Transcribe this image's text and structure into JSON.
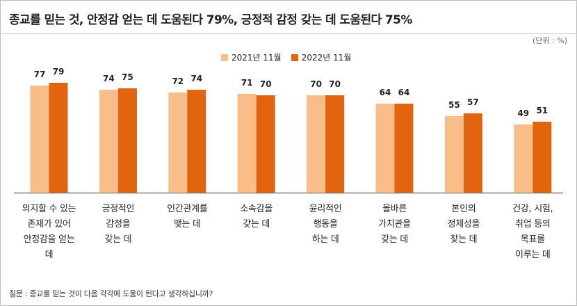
{
  "header": {
    "title": "종교를 믿는 것, 안정감 얻는 데 도움된다 79%, 긍정적 감정 갖는 데 도움된다 75%",
    "unit": "(단위 : %)"
  },
  "footer": {
    "note": "질문 : 종교를 믿는 것이 다음 각각에 도움이 된다고 생각하십니까?"
  },
  "colors": {
    "series_2021": "#f9bd8a",
    "series_2022": "#e2640e",
    "axis": "#7f7f7f"
  },
  "chart_data": {
    "type": "bar",
    "title": "종교를 믿는 것, 안정감 얻는 데 도움된다 79%, 긍정적 감정 갖는 데 도움된다 75%",
    "xlabel": "",
    "ylabel": "",
    "ylim": [
      0,
      100
    ],
    "grid": false,
    "legend_position": "top-center",
    "categories": [
      [
        "의지할 수 있는",
        "존재가 있어",
        "안정감을 얻는",
        "데"
      ],
      [
        "긍정적인",
        "감정을",
        "갖는 데"
      ],
      [
        "인간관계를",
        "맺는 데"
      ],
      [
        "소속감을",
        "갖는 데"
      ],
      [
        "윤리적인",
        "행동을",
        "하는 데"
      ],
      [
        "올바른",
        "가치관을",
        "갖는 데"
      ],
      [
        "본인의",
        "정체성을",
        "찾는 데"
      ],
      [
        "건강, 시험,",
        "취업 등의",
        "목표를",
        "이루는 데"
      ]
    ],
    "series": [
      {
        "name": "2021년 11월",
        "values": [
          77,
          74,
          72,
          71,
          70,
          64,
          55,
          49
        ]
      },
      {
        "name": "2022년 11월",
        "values": [
          79,
          75,
          74,
          70,
          70,
          64,
          57,
          51
        ]
      }
    ]
  }
}
